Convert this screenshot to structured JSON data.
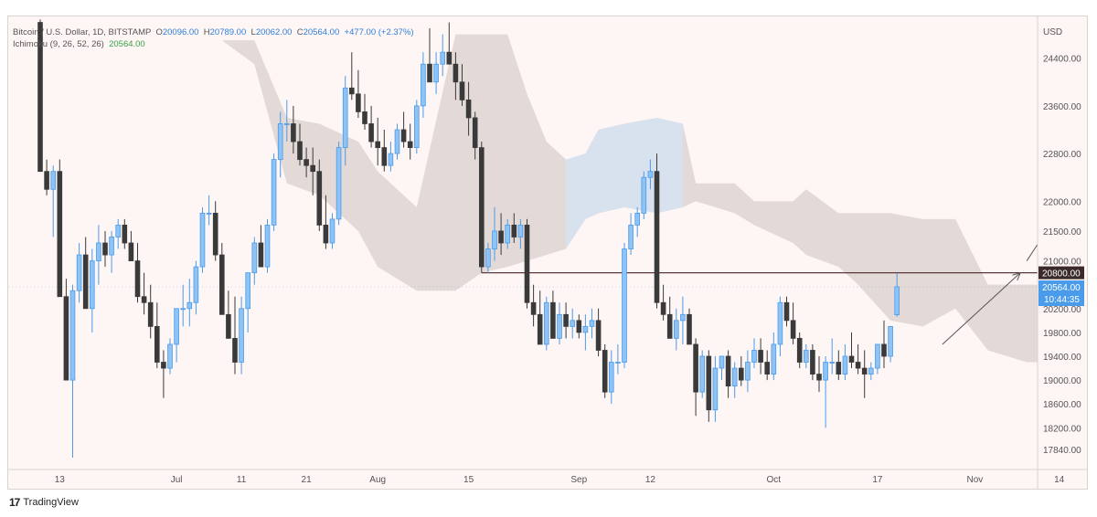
{
  "legend": {
    "symbol": "Bitcoin / U.S. Dollar, 1D, BITSTAMP",
    "o_label": "O",
    "o_val": "20096.00",
    "h_label": "H",
    "h_val": "20789.00",
    "l_label": "L",
    "l_val": "20062.00",
    "c_label": "C",
    "c_val": "20564.00",
    "change": "+477.00 (+2.37%)",
    "indicator": "Ichimoku (9, 26, 52, 26)",
    "indicator_val": "20564.00"
  },
  "price_axis": {
    "currency": "USD",
    "level_label": "20800.00",
    "last_price": "20564.00",
    "countdown": "10:44:35"
  },
  "branding": {
    "name": "TradingView",
    "mark": "17"
  },
  "colors": {
    "up": "#4a9bea",
    "down": "#3a3a3a",
    "cloud_bear": "#d9cfcd",
    "cloud_bull": "#d6e3f3",
    "level_line": "#5a3a3a",
    "last_price_bg": "#4a9bea"
  },
  "chart_data": {
    "type": "candlestick",
    "timeframe": "1D",
    "ylim": [
      17500,
      25100
    ],
    "yticks": [
      24400,
      23600,
      22800,
      22000,
      21500,
      21000,
      20200,
      19800,
      19400,
      19000,
      18600,
      18200,
      17840
    ],
    "xticks": [
      {
        "day": 3,
        "label": "13"
      },
      {
        "day": 21,
        "label": "Jul"
      },
      {
        "day": 31,
        "label": "11"
      },
      {
        "day": 41,
        "label": "21"
      },
      {
        "day": 52,
        "label": "Aug"
      },
      {
        "day": 66,
        "label": "15"
      },
      {
        "day": 83,
        "label": "Sep"
      },
      {
        "day": 94,
        "label": "12"
      },
      {
        "day": 113,
        "label": "Oct"
      },
      {
        "day": 129,
        "label": "17"
      },
      {
        "day": 144,
        "label": "Nov"
      },
      {
        "day": 157,
        "label": "14"
      }
    ],
    "level": 20800,
    "last_close": 20564,
    "candles": [
      [
        25000,
        25050,
        22500,
        22500
      ],
      [
        22500,
        22700,
        22100,
        22200
      ],
      [
        22200,
        22600,
        21400,
        22500
      ],
      [
        22500,
        22700,
        20400,
        20400
      ],
      [
        20400,
        20700,
        19000,
        19000
      ],
      [
        19000,
        20600,
        17700,
        20500
      ],
      [
        20500,
        21300,
        20300,
        21100
      ],
      [
        21100,
        21400,
        20200,
        20200
      ],
      [
        20200,
        21200,
        19800,
        21000
      ],
      [
        21000,
        21600,
        20600,
        21300
      ],
      [
        21300,
        21500,
        20900,
        21100
      ],
      [
        21100,
        21500,
        20800,
        21400
      ],
      [
        21400,
        21700,
        21200,
        21600
      ],
      [
        21600,
        21700,
        21200,
        21300
      ],
      [
        21300,
        21500,
        21000,
        21000
      ],
      [
        21000,
        21300,
        20300,
        20400
      ],
      [
        20400,
        20800,
        20100,
        20300
      ],
      [
        20300,
        20600,
        19700,
        19900
      ],
      [
        19900,
        20300,
        19200,
        19300
      ],
      [
        19300,
        19500,
        18700,
        19200
      ],
      [
        19200,
        19700,
        19100,
        19600
      ],
      [
        19600,
        20200,
        19300,
        20200
      ],
      [
        20200,
        20600,
        19900,
        20200
      ],
      [
        20200,
        20700,
        19900,
        20300
      ],
      [
        20300,
        21000,
        20100,
        20900
      ],
      [
        20900,
        21900,
        20800,
        21800
      ],
      [
        21800,
        22100,
        21600,
        21800
      ],
      [
        21800,
        22000,
        21000,
        21100
      ],
      [
        21100,
        21300,
        20100,
        20100
      ],
      [
        20100,
        20500,
        19700,
        19700
      ],
      [
        19700,
        20400,
        19100,
        19300
      ],
      [
        19300,
        20400,
        19100,
        20200
      ],
      [
        20200,
        20800,
        19800,
        20800
      ],
      [
        20800,
        21400,
        20600,
        21300
      ],
      [
        21300,
        21600,
        20900,
        20900
      ],
      [
        20900,
        21700,
        20800,
        21600
      ],
      [
        21600,
        22800,
        21500,
        22700
      ],
      [
        22700,
        23500,
        22400,
        23300
      ],
      [
        23300,
        23700,
        23000,
        23300
      ],
      [
        23300,
        23600,
        22800,
        23000
      ],
      [
        23000,
        23300,
        22600,
        22700
      ],
      [
        22700,
        22900,
        22400,
        22600
      ],
      [
        22600,
        22900,
        22100,
        22500
      ],
      [
        22500,
        22700,
        21500,
        21600
      ],
      [
        21600,
        22100,
        21200,
        21300
      ],
      [
        21300,
        21800,
        21200,
        21700
      ],
      [
        21700,
        23000,
        21600,
        22900
      ],
      [
        22900,
        24100,
        22600,
        23900
      ],
      [
        23900,
        24500,
        23700,
        23800
      ],
      [
        23800,
        24200,
        23400,
        23500
      ],
      [
        23500,
        23800,
        23200,
        23300
      ],
      [
        23300,
        23600,
        22900,
        23000
      ],
      [
        23000,
        23400,
        22600,
        22900
      ],
      [
        22900,
        23200,
        22500,
        22600
      ],
      [
        22600,
        23000,
        22500,
        22800
      ],
      [
        22800,
        23300,
        22700,
        23200
      ],
      [
        23200,
        23500,
        22900,
        23000
      ],
      [
        23000,
        23300,
        22700,
        22900
      ],
      [
        22900,
        23700,
        22800,
        23600
      ],
      [
        23600,
        24500,
        23400,
        24300
      ],
      [
        24300,
        24900,
        24000,
        24000
      ],
      [
        24000,
        24500,
        23800,
        24300
      ],
      [
        24300,
        24800,
        24100,
        24500
      ],
      [
        24500,
        25000,
        24300,
        24300
      ],
      [
        24300,
        24500,
        23700,
        24000
      ],
      [
        24000,
        24300,
        23600,
        23700
      ],
      [
        23700,
        24000,
        23100,
        23400
      ],
      [
        23400,
        23500,
        22700,
        22900
      ],
      [
        22900,
        23000,
        20800,
        20900
      ],
      [
        20900,
        21300,
        20800,
        21200
      ],
      [
        21200,
        21900,
        21000,
        21500
      ],
      [
        21500,
        21800,
        21100,
        21300
      ],
      [
        21300,
        21700,
        21200,
        21600
      ],
      [
        21600,
        21800,
        21300,
        21400
      ],
      [
        21400,
        21700,
        21200,
        21600
      ],
      [
        21600,
        21700,
        20200,
        20300
      ],
      [
        20300,
        20600,
        19900,
        20100
      ],
      [
        20100,
        20500,
        19600,
        19600
      ],
      [
        19600,
        20400,
        19500,
        20300
      ],
      [
        20300,
        20500,
        19700,
        19700
      ],
      [
        19700,
        20300,
        19600,
        20100
      ],
      [
        20100,
        20300,
        19700,
        19900
      ],
      [
        19900,
        20200,
        19700,
        20000
      ],
      [
        20000,
        20100,
        19700,
        19800
      ],
      [
        19800,
        20100,
        19500,
        19900
      ],
      [
        19900,
        20200,
        19700,
        20000
      ],
      [
        20000,
        20200,
        19400,
        19500
      ],
      [
        19500,
        19600,
        18700,
        18800
      ],
      [
        18800,
        19500,
        18600,
        19300
      ],
      [
        19300,
        19600,
        19100,
        19300
      ],
      [
        19300,
        21300,
        19200,
        21200
      ],
      [
        21200,
        21800,
        21100,
        21600
      ],
      [
        21600,
        21900,
        21400,
        21800
      ],
      [
        21800,
        22500,
        21700,
        22400
      ],
      [
        22400,
        22700,
        22200,
        22500
      ],
      [
        22500,
        22800,
        20200,
        20300
      ],
      [
        20300,
        20600,
        20000,
        20100
      ],
      [
        20100,
        20400,
        19700,
        19700
      ],
      [
        19700,
        20200,
        19500,
        20000
      ],
      [
        20000,
        20400,
        19600,
        20100
      ],
      [
        20100,
        20200,
        19600,
        19600
      ],
      [
        19600,
        19700,
        18400,
        18800
      ],
      [
        18800,
        19500,
        18700,
        19400
      ],
      [
        19400,
        19500,
        18300,
        18500
      ],
      [
        18500,
        19400,
        18300,
        19200
      ],
      [
        19200,
        19400,
        19000,
        19400
      ],
      [
        19400,
        19500,
        18700,
        18900
      ],
      [
        18900,
        19300,
        18700,
        19200
      ],
      [
        19200,
        19400,
        18900,
        19000
      ],
      [
        19000,
        19500,
        18800,
        19300
      ],
      [
        19300,
        19700,
        19200,
        19500
      ],
      [
        19500,
        19700,
        19100,
        19300
      ],
      [
        19300,
        19500,
        19000,
        19100
      ],
      [
        19100,
        19800,
        19000,
        19600
      ],
      [
        19600,
        20400,
        19400,
        20300
      ],
      [
        20300,
        20400,
        19900,
        20000
      ],
      [
        20000,
        20300,
        19600,
        19700
      ],
      [
        19700,
        19800,
        19200,
        19300
      ],
      [
        19300,
        19600,
        19200,
        19500
      ],
      [
        19500,
        19600,
        19000,
        19100
      ],
      [
        19100,
        19400,
        18800,
        19000
      ],
      [
        19000,
        19400,
        18200,
        19300
      ],
      [
        19300,
        19700,
        19100,
        19300
      ],
      [
        19300,
        19500,
        19000,
        19100
      ],
      [
        19100,
        19600,
        19000,
        19400
      ],
      [
        19400,
        19800,
        19200,
        19300
      ],
      [
        19300,
        19600,
        19100,
        19200
      ],
      [
        19200,
        19500,
        18700,
        19100
      ],
      [
        19100,
        19300,
        19000,
        19200
      ],
      [
        19200,
        19600,
        19100,
        19600
      ],
      [
        19600,
        20000,
        19200,
        19400
      ],
      [
        19400,
        19900,
        19300,
        19900
      ],
      [
        20096,
        20789,
        20062,
        20564
      ]
    ],
    "cloud_top": [
      [
        28,
        24700
      ],
      [
        33,
        24700
      ],
      [
        38,
        23400
      ],
      [
        43,
        23300
      ],
      [
        49,
        23000
      ],
      [
        52,
        22500
      ],
      [
        58,
        21900
      ],
      [
        64,
        24800
      ],
      [
        70,
        24800
      ],
      [
        72,
        24800
      ],
      [
        75,
        23800
      ],
      [
        78,
        23000
      ],
      [
        81,
        22700
      ],
      [
        84,
        22800
      ],
      [
        86,
        23200
      ],
      [
        90,
        23300
      ],
      [
        95,
        23400
      ],
      [
        99,
        23300
      ],
      [
        101,
        22300
      ],
      [
        107,
        22300
      ],
      [
        110,
        22000
      ],
      [
        116,
        22000
      ],
      [
        118,
        22200
      ],
      [
        123,
        21800
      ],
      [
        126,
        21800
      ],
      [
        131,
        21800
      ],
      [
        136,
        21700
      ],
      [
        141,
        21700
      ],
      [
        146,
        20600
      ],
      [
        152,
        20600
      ],
      [
        158,
        20600
      ]
    ],
    "cloud_bottom": [
      [
        28,
        24700
      ],
      [
        33,
        24300
      ],
      [
        38,
        22300
      ],
      [
        43,
        22100
      ],
      [
        49,
        21500
      ],
      [
        52,
        20900
      ],
      [
        58,
        20500
      ],
      [
        64,
        20500
      ],
      [
        68,
        20800
      ],
      [
        72,
        20900
      ],
      [
        75,
        21000
      ],
      [
        78,
        21100
      ],
      [
        81,
        21200
      ],
      [
        84,
        21700
      ],
      [
        86,
        21800
      ],
      [
        90,
        21900
      ],
      [
        95,
        21800
      ],
      [
        99,
        21900
      ],
      [
        101,
        22000
      ],
      [
        107,
        21800
      ],
      [
        110,
        21600
      ],
      [
        116,
        21300
      ],
      [
        118,
        21100
      ],
      [
        123,
        20900
      ],
      [
        126,
        20600
      ],
      [
        131,
        20000
      ],
      [
        136,
        19900
      ],
      [
        141,
        20200
      ],
      [
        146,
        19500
      ],
      [
        152,
        19300
      ],
      [
        158,
        19300
      ]
    ],
    "bull_cloud_days": [
      81,
      99
    ],
    "projection": {
      "arrow1": {
        "from": [
          139,
          19600
        ],
        "to": [
          151,
          20800
        ]
      },
      "arrow2": {
        "from": [
          152,
          21000
        ],
        "to": [
          158,
          22000
        ]
      }
    }
  }
}
